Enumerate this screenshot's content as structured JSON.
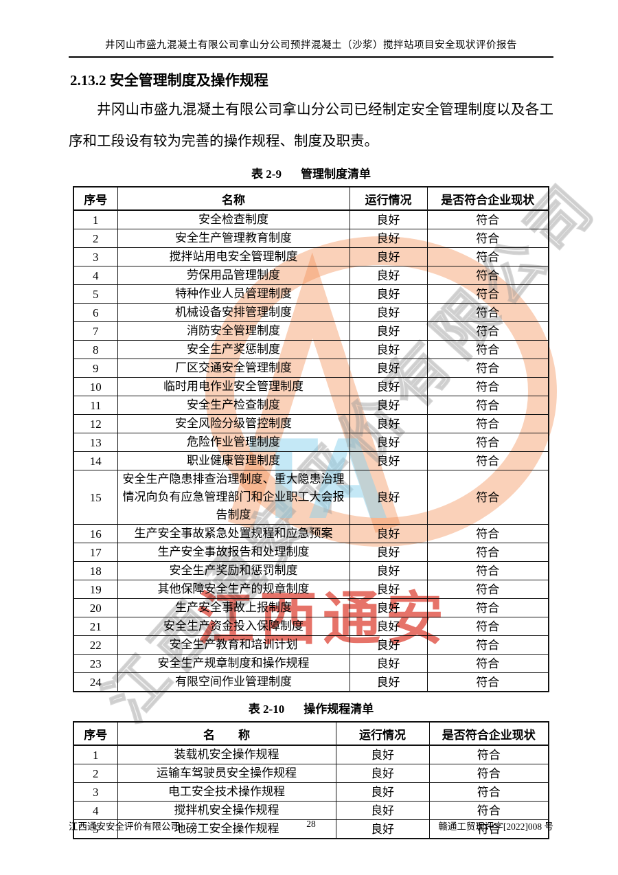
{
  "page": {
    "header_title": "井冈山市盛九混凝土有限公司拿山分公司预拌混凝土（沙浆）搅拌站项目安全现状评价报告",
    "section_heading": "2.13.2 安全管理制度及操作规程",
    "paragraph": "井冈山市盛九混凝土有限公司拿山分公司已经制定安全管理制度以及各工序和工段设有较为完善的操作规程、制度及职责。"
  },
  "table1": {
    "caption_label": "表 2-9",
    "caption_title": "管理制度清单",
    "headers": [
      "序号",
      "名称",
      "运行情况",
      "是否符合企业现状"
    ],
    "rows": [
      {
        "no": "1",
        "name": "安全检查制度",
        "status": "良好",
        "conform": "符合"
      },
      {
        "no": "2",
        "name": "安全生产管理教育制度",
        "status": "良好",
        "conform": "符合"
      },
      {
        "no": "3",
        "name": "搅拌站用电安全管理制度",
        "status": "良好",
        "conform": "符合"
      },
      {
        "no": "4",
        "name": "劳保用品管理制度",
        "status": "良好",
        "conform": "符合"
      },
      {
        "no": "5",
        "name": "特种作业人员管理制度",
        "status": "良好",
        "conform": "符合"
      },
      {
        "no": "6",
        "name": "机械设备安排管理制度",
        "status": "良好",
        "conform": "符合"
      },
      {
        "no": "7",
        "name": "消防安全管理制度",
        "status": "良好",
        "conform": "符合"
      },
      {
        "no": "8",
        "name": "安全生产奖惩制度",
        "status": "良好",
        "conform": "符合"
      },
      {
        "no": "9",
        "name": "厂区交通安全管理制度",
        "status": "良好",
        "conform": "符合"
      },
      {
        "no": "10",
        "name": "临时用电作业安全管理制度",
        "status": "良好",
        "conform": "符合"
      },
      {
        "no": "11",
        "name": "安全生产检查制度",
        "status": "良好",
        "conform": "符合"
      },
      {
        "no": "12",
        "name": "安全风险分级管控制度",
        "status": "良好",
        "conform": "符合"
      },
      {
        "no": "13",
        "name": "危险作业管理制度",
        "status": "良好",
        "conform": "符合"
      },
      {
        "no": "14",
        "name": "职业健康管理制度",
        "status": "良好",
        "conform": "符合"
      },
      {
        "no": "15",
        "name": "安全生产隐患排查治理制度、重大隐患治理情况向负有应急管理部门和企业职工大会报告制度",
        "status": "良好",
        "conform": "符合"
      },
      {
        "no": "16",
        "name": "生产安全事故紧急处置规程和应急预案",
        "status": "良好",
        "conform": "符合"
      },
      {
        "no": "17",
        "name": "生产安全事故报告和处理制度",
        "status": "良好",
        "conform": "符合"
      },
      {
        "no": "18",
        "name": "安全生产奖励和惩罚制度",
        "status": "良好",
        "conform": "符合"
      },
      {
        "no": "19",
        "name": "其他保障安全生产的规章制度",
        "status": "良好",
        "conform": "符合"
      },
      {
        "no": "20",
        "name": "生产安全事故上报制度",
        "status": "良好",
        "conform": "符合"
      },
      {
        "no": "21",
        "name": "安全生产资金投入保障制度",
        "status": "良好",
        "conform": "符合"
      },
      {
        "no": "22",
        "name": "安全生产教育和培训计划",
        "status": "良好",
        "conform": "符合"
      },
      {
        "no": "23",
        "name": "安全生产规章制度和操作规程",
        "status": "良好",
        "conform": "符合"
      },
      {
        "no": "24",
        "name": "有限空间作业管理制度",
        "status": "良好",
        "conform": "符合"
      }
    ]
  },
  "table2": {
    "caption_label": "表 2-10",
    "caption_title": "操作规程清单",
    "headers": [
      "序号",
      "名　　称",
      "运行情况",
      "是否符合企业现状"
    ],
    "rows": [
      {
        "no": "1",
        "name": "装载机安全操作规程",
        "status": "良好",
        "conform": "符合"
      },
      {
        "no": "2",
        "name": "运输车驾驶员安全操作规程",
        "status": "良好",
        "conform": "符合"
      },
      {
        "no": "3",
        "name": "电工安全技术操作规程",
        "status": "良好",
        "conform": "符合"
      },
      {
        "no": "4",
        "name": "搅拌机安全操作规程",
        "status": "良好",
        "conform": "符合"
      },
      {
        "no": "5",
        "name": "地磅工安全操作规程",
        "status": "良好",
        "conform": "符合"
      }
    ]
  },
  "footer": {
    "company": "江西通安安全评价有限公司",
    "page_number": "28",
    "doc_number": "赣通工贸现评字[2022]008 号"
  },
  "watermark": {
    "diagonal_text": "江西通安评价有限公司",
    "ta_text": "TA",
    "stamp_text": "江西通安",
    "orange_color": "#f29258",
    "red_color": "#dc382a",
    "cyan_color": "#8ad1ee",
    "gray_color": "#969696"
  }
}
